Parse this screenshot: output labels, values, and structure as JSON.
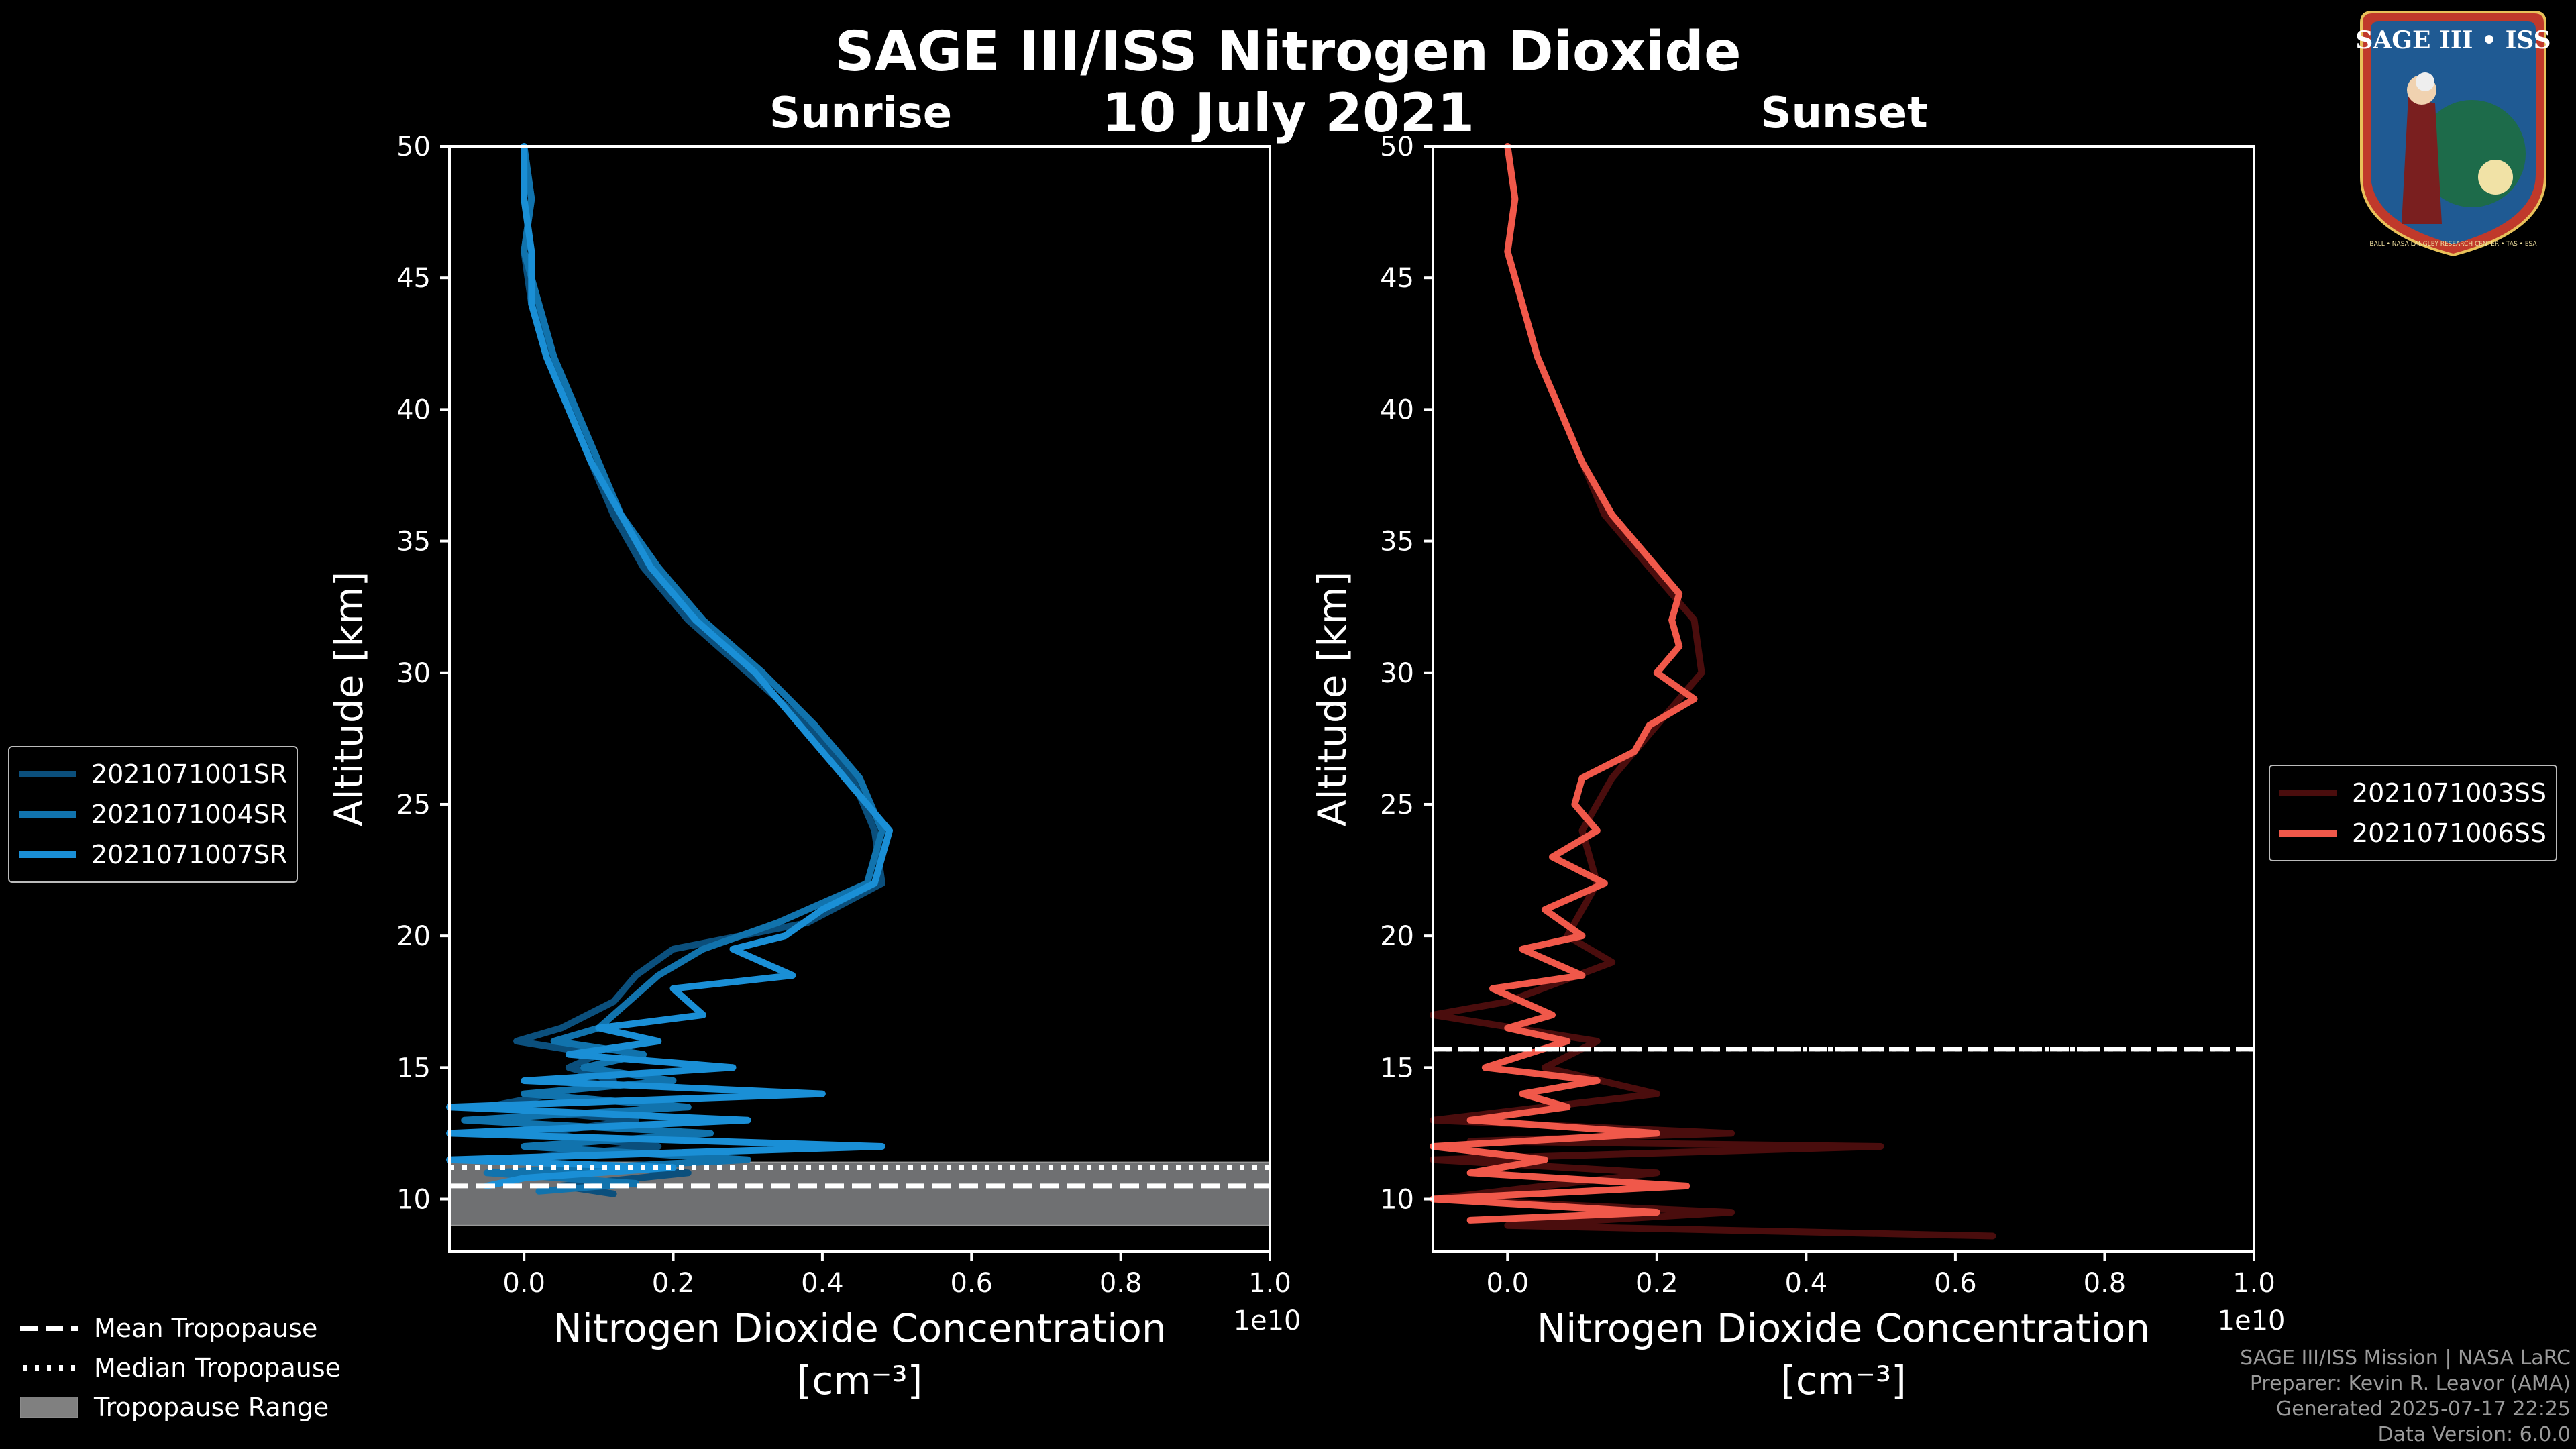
{
  "figure": {
    "title": "SAGE III/ISS Nitrogen Dioxide",
    "date": "10 July 2021"
  },
  "chart_data": [
    {
      "type": "line",
      "panel": "Sunrise",
      "title": "Sunrise",
      "xlabel": "Nitrogen Dioxide Concentration",
      "xunits": "[cm⁻³]",
      "x_offset_label": "1e10",
      "ylabel": "Altitude [km]",
      "xlim": [
        -0.1,
        1.0
      ],
      "ylim": [
        8,
        50
      ],
      "xticks": [
        "0.0",
        "0.2",
        "0.4",
        "0.6",
        "0.8",
        "1.0"
      ],
      "yticks": [
        "10",
        "15",
        "20",
        "25",
        "30",
        "35",
        "40",
        "45",
        "50"
      ],
      "tropopause": {
        "mean": 10.5,
        "median": 11.2,
        "range": [
          9.0,
          11.4
        ]
      },
      "series": [
        {
          "name": "2021071001SR",
          "color": "#0b4f7c",
          "points": [
            [
              0.0,
              50
            ],
            [
              0.01,
              48
            ],
            [
              0.0,
              46
            ],
            [
              0.01,
              44
            ],
            [
              0.04,
              42
            ],
            [
              0.06,
              40
            ],
            [
              0.09,
              38
            ],
            [
              0.12,
              36
            ],
            [
              0.16,
              34
            ],
            [
              0.22,
              32
            ],
            [
              0.3,
              30
            ],
            [
              0.38,
              28
            ],
            [
              0.44,
              26
            ],
            [
              0.47,
              24
            ],
            [
              0.48,
              22
            ],
            [
              0.38,
              20.5
            ],
            [
              0.2,
              19.5
            ],
            [
              0.15,
              18.5
            ],
            [
              0.12,
              17.5
            ],
            [
              0.05,
              16.5
            ],
            [
              -0.01,
              16
            ],
            [
              0.1,
              15.5
            ],
            [
              0.06,
              15
            ],
            [
              0.12,
              14.5
            ],
            [
              0.04,
              14
            ],
            [
              -0.05,
              13.5
            ],
            [
              0.15,
              13
            ],
            [
              0.02,
              12.5
            ],
            [
              0.18,
              12
            ],
            [
              -0.02,
              11.5
            ],
            [
              0.22,
              11
            ],
            [
              0.05,
              10.5
            ],
            [
              0.12,
              10.2
            ]
          ]
        },
        {
          "name": "2021071004SR",
          "color": "#1173ad",
          "points": [
            [
              0.0,
              50
            ],
            [
              0.01,
              48
            ],
            [
              0.0,
              46
            ],
            [
              0.02,
              44
            ],
            [
              0.04,
              42
            ],
            [
              0.07,
              40
            ],
            [
              0.1,
              38
            ],
            [
              0.13,
              36
            ],
            [
              0.18,
              34
            ],
            [
              0.24,
              32
            ],
            [
              0.32,
              30
            ],
            [
              0.39,
              28
            ],
            [
              0.45,
              26
            ],
            [
              0.48,
              24
            ],
            [
              0.46,
              22
            ],
            [
              0.34,
              20.5
            ],
            [
              0.24,
              19.5
            ],
            [
              0.18,
              18.5
            ],
            [
              0.14,
              17.5
            ],
            [
              0.1,
              16.5
            ],
            [
              0.04,
              16
            ],
            [
              0.16,
              15.5
            ],
            [
              0.08,
              15
            ],
            [
              0.2,
              14.5
            ],
            [
              0.0,
              14
            ],
            [
              0.22,
              13.5
            ],
            [
              -0.08,
              13
            ],
            [
              0.25,
              12.5
            ],
            [
              0.0,
              12
            ],
            [
              0.3,
              11.5
            ],
            [
              -0.05,
              11
            ],
            [
              0.15,
              10.6
            ],
            [
              0.02,
              10.3
            ]
          ]
        },
        {
          "name": "2021071007SR",
          "color": "#1a8fd6",
          "points": [
            [
              0.0,
              50
            ],
            [
              0.0,
              48
            ],
            [
              0.01,
              46
            ],
            [
              0.01,
              44
            ],
            [
              0.03,
              42
            ],
            [
              0.06,
              40
            ],
            [
              0.09,
              38
            ],
            [
              0.13,
              36
            ],
            [
              0.17,
              34
            ],
            [
              0.23,
              32
            ],
            [
              0.31,
              30
            ],
            [
              0.37,
              28
            ],
            [
              0.43,
              26
            ],
            [
              0.49,
              24
            ],
            [
              0.47,
              22
            ],
            [
              0.4,
              21
            ],
            [
              0.35,
              20
            ],
            [
              0.28,
              19.5
            ],
            [
              0.36,
              18.5
            ],
            [
              0.2,
              18
            ],
            [
              0.24,
              17
            ],
            [
              0.1,
              16.5
            ],
            [
              0.18,
              16
            ],
            [
              0.06,
              15.5
            ],
            [
              0.28,
              15
            ],
            [
              0.0,
              14.5
            ],
            [
              0.4,
              14
            ],
            [
              -0.1,
              13.5
            ],
            [
              0.3,
              13
            ],
            [
              -0.1,
              12.5
            ],
            [
              0.48,
              12
            ],
            [
              -0.1,
              11.5
            ],
            [
              0.2,
              11.2
            ],
            [
              0.0,
              10.8
            ],
            [
              -0.05,
              10.5
            ]
          ]
        }
      ]
    },
    {
      "type": "line",
      "panel": "Sunset",
      "title": "Sunset",
      "xlabel": "Nitrogen Dioxide Concentration",
      "xunits": "[cm⁻³]",
      "x_offset_label": "1e10",
      "ylabel": "Altitude [km]",
      "xlim": [
        -0.1,
        1.0
      ],
      "ylim": [
        8,
        50
      ],
      "xticks": [
        "0.0",
        "0.2",
        "0.4",
        "0.6",
        "0.8",
        "1.0"
      ],
      "yticks": [
        "10",
        "15",
        "20",
        "25",
        "30",
        "35",
        "40",
        "45",
        "50"
      ],
      "tropopause": {
        "mean": 15.7,
        "median": 15.7,
        "range": [
          15.7,
          15.7
        ]
      },
      "series": [
        {
          "name": "2021071003SS",
          "color": "#4a0d0d",
          "points": [
            [
              0.0,
              50
            ],
            [
              0.01,
              48
            ],
            [
              0.0,
              46
            ],
            [
              0.02,
              44
            ],
            [
              0.04,
              42
            ],
            [
              0.07,
              40
            ],
            [
              0.1,
              38
            ],
            [
              0.13,
              36
            ],
            [
              0.19,
              34
            ],
            [
              0.25,
              32
            ],
            [
              0.26,
              30
            ],
            [
              0.2,
              28
            ],
            [
              0.14,
              26
            ],
            [
              0.1,
              24
            ],
            [
              0.12,
              22
            ],
            [
              0.08,
              20
            ],
            [
              0.14,
              19
            ],
            [
              0.0,
              17.5
            ],
            [
              -0.1,
              17
            ],
            [
              0.12,
              16
            ],
            [
              0.05,
              15
            ],
            [
              0.2,
              14
            ],
            [
              -0.1,
              13
            ],
            [
              0.3,
              12.5
            ],
            [
              -0.05,
              12.2
            ],
            [
              0.5,
              12
            ],
            [
              -0.1,
              11.5
            ],
            [
              0.2,
              11
            ],
            [
              -0.1,
              10
            ],
            [
              0.3,
              9.5
            ],
            [
              0.0,
              9.0
            ],
            [
              0.65,
              8.6
            ]
          ]
        },
        {
          "name": "2021071006SS",
          "color": "#f0584a",
          "points": [
            [
              0.0,
              50
            ],
            [
              0.01,
              48
            ],
            [
              0.0,
              46
            ],
            [
              0.02,
              44
            ],
            [
              0.04,
              42
            ],
            [
              0.07,
              40
            ],
            [
              0.1,
              38
            ],
            [
              0.14,
              36
            ],
            [
              0.2,
              34
            ],
            [
              0.23,
              33
            ],
            [
              0.22,
              32
            ],
            [
              0.23,
              31
            ],
            [
              0.2,
              30
            ],
            [
              0.25,
              29
            ],
            [
              0.19,
              28
            ],
            [
              0.17,
              27
            ],
            [
              0.1,
              26
            ],
            [
              0.09,
              25
            ],
            [
              0.12,
              24
            ],
            [
              0.06,
              23
            ],
            [
              0.13,
              22
            ],
            [
              0.05,
              21
            ],
            [
              0.1,
              20
            ],
            [
              0.02,
              19.5
            ],
            [
              0.1,
              18.5
            ],
            [
              -0.02,
              18
            ],
            [
              0.06,
              17
            ],
            [
              0.0,
              16.5
            ],
            [
              0.08,
              16
            ],
            [
              -0.03,
              15
            ],
            [
              0.12,
              14.5
            ],
            [
              0.02,
              14
            ],
            [
              0.08,
              13.5
            ],
            [
              -0.05,
              13
            ],
            [
              0.2,
              12.5
            ],
            [
              -0.1,
              12
            ],
            [
              0.05,
              11.5
            ],
            [
              -0.05,
              11
            ],
            [
              0.24,
              10.5
            ],
            [
              -0.1,
              10
            ],
            [
              0.2,
              9.5
            ],
            [
              -0.05,
              9.2
            ]
          ]
        }
      ]
    }
  ],
  "legend_bottom": {
    "mean": "Mean Tropopause",
    "median": "Median Tropopause",
    "range": "Tropopause Range"
  },
  "footer": {
    "line1": "SAGE III/ISS Mission | NASA LaRC",
    "line2": "Preparer: Kevin R. Leavor (AMA)",
    "line3": "Generated 2025-07-17 22:25",
    "line4": "Data Version: 6.0.0"
  },
  "logo": {
    "text": "SAGE III • ISS",
    "ring_text": "BALL • NASA LANGLEY RESEARCH CENTER • TAS • ESA",
    "colors": {
      "ring": "#c0392b",
      "inner": "#1f5a93",
      "gold": "#e8c15a"
    }
  }
}
